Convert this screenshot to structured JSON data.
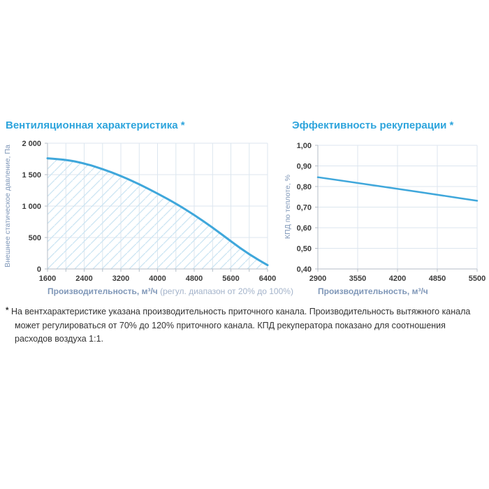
{
  "colors": {
    "accent_title": "#2da4dc",
    "curve": "#3fa7db",
    "grid": "#dce6ef",
    "axis": "#b6bec7",
    "hatch": "#cbe5f3",
    "tick_text": "#3b3b3b",
    "axis_title": "#7f97b8",
    "axis_title_note": "#a3b3ca",
    "footnote_text": "#333333"
  },
  "chart_data": [
    {
      "type": "area",
      "title": "Вентиляционная характеристика *",
      "ylabel": "Внешнее статическое давление, Па",
      "xlabel": "Производительность, м³/ч",
      "xlabel_note": " (регул. диапазон от 20% до 100%)",
      "xlim": [
        1600,
        6400
      ],
      "ylim": [
        0,
        2000
      ],
      "xtick_values": [
        1600,
        2400,
        3200,
        4000,
        4800,
        5600,
        6400
      ],
      "xtick_labels": [
        "1600",
        "2400",
        "3200",
        "4000",
        "4800",
        "5600",
        "6400"
      ],
      "xtick_marks": [
        1600,
        2000,
        2400,
        2800,
        3200,
        3600,
        4000,
        4400,
        4800,
        5200,
        5600,
        6000,
        6400
      ],
      "ytick_values": [
        0,
        500,
        1000,
        1500,
        2000
      ],
      "ytick_labels": [
        "0",
        "500",
        "1 000",
        "1 500",
        "2 000"
      ],
      "xgrid": [
        2000,
        2400,
        2800,
        3200,
        3600,
        4000,
        4400,
        4800,
        5200,
        5600,
        6000,
        6400
      ],
      "ygrid": [
        500,
        1000,
        1500,
        2000
      ],
      "grid_on": true,
      "hatch_fill": true,
      "series": [
        {
          "name": "Внешнее статическое давление",
          "x": [
            1600,
            2000,
            2400,
            2800,
            3200,
            3600,
            4000,
            4400,
            4800,
            5200,
            5600,
            6000,
            6400
          ],
          "y": [
            1760,
            1740,
            1680,
            1590,
            1480,
            1350,
            1200,
            1040,
            860,
            660,
            440,
            230,
            60
          ]
        }
      ]
    },
    {
      "type": "line",
      "title": "Эффективность рекуперации *",
      "ylabel": "КПД по теплоте, %",
      "xlabel": "Производительность, м³/ч",
      "xlabel_note": "",
      "xlim": [
        2900,
        5500
      ],
      "ylim": [
        0.4,
        1.0
      ],
      "xtick_values": [
        2900,
        3550,
        4200,
        4850,
        5500
      ],
      "xtick_labels": [
        "2900",
        "3550",
        "4200",
        "4850",
        "5500"
      ],
      "xtick_marks": [
        2900,
        3550,
        4200,
        4850,
        5500
      ],
      "ytick_values": [
        0.4,
        0.5,
        0.6,
        0.7,
        0.8,
        0.9,
        1.0
      ],
      "ytick_labels": [
        "0,40",
        "0,50",
        "0,60",
        "0,70",
        "0,80",
        "0,90",
        "1,00"
      ],
      "xgrid": [
        3550,
        4200,
        4850,
        5500
      ],
      "ygrid": [
        0.5,
        0.6,
        0.7,
        0.8,
        0.9,
        1.0
      ],
      "grid_on": true,
      "hatch_fill": false,
      "series": [
        {
          "name": "КПД по теплоте",
          "x": [
            2900,
            3550,
            4200,
            4850,
            5500
          ],
          "y": [
            0.845,
            0.817,
            0.789,
            0.76,
            0.731
          ]
        }
      ]
    }
  ],
  "footnote": {
    "marker": "*",
    "text": "На вентхарактеристике указана производительность приточного канала. Производительность вытяжного канала может регулироваться от 70% до 120% приточного канала. КПД рекуператора показано для соотношения расходов воздуха 1:1."
  }
}
